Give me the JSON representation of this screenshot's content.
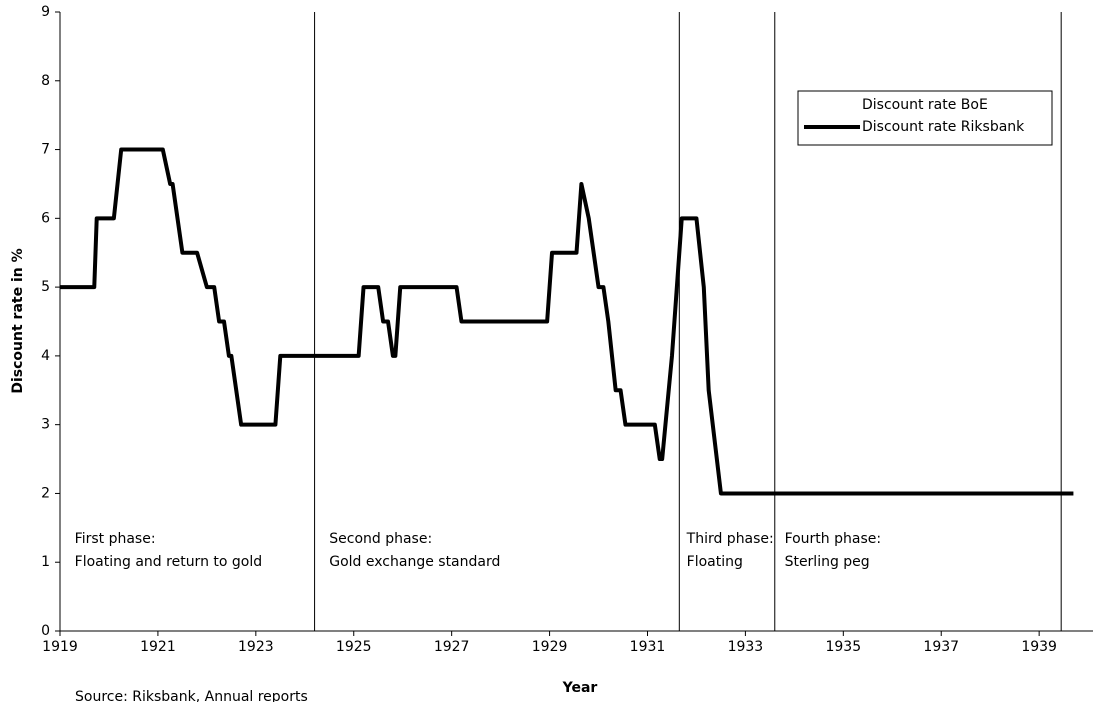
{
  "chart_data": {
    "type": "line",
    "x_label": "Year",
    "y_label": "Discount rate in %",
    "source": "Source: Riksbank, Annual reports",
    "x": [
      1919.0,
      1919.7,
      1919.75,
      1920.1,
      1920.25,
      1921.1,
      1921.25,
      1921.3,
      1921.5,
      1921.8,
      1922.0,
      1922.15,
      1922.25,
      1922.35,
      1922.45,
      1922.5,
      1922.7,
      1923.4,
      1923.5,
      1925.1,
      1925.2,
      1925.5,
      1925.6,
      1925.7,
      1925.8,
      1925.85,
      1925.95,
      1927.1,
      1927.2,
      1928.95,
      1929.05,
      1929.55,
      1929.65,
      1929.8,
      1930.0,
      1930.1,
      1930.2,
      1930.35,
      1930.45,
      1930.55,
      1931.15,
      1931.25,
      1931.3,
      1931.5,
      1931.7,
      1932.0,
      1932.15,
      1932.25,
      1932.5,
      1939.7
    ],
    "series": [
      {
        "name": "Discount rate BoE",
        "color": "#ffffff",
        "values": [
          null,
          null,
          null,
          null,
          null,
          null,
          null,
          null,
          null,
          null,
          null,
          null,
          null,
          null,
          null,
          null,
          null,
          null,
          null,
          null,
          null,
          null,
          null,
          null,
          null,
          null,
          null,
          null,
          null,
          null,
          null,
          null,
          null,
          null,
          null,
          null,
          null,
          null,
          null,
          null,
          null,
          null,
          null,
          null,
          null,
          null,
          null,
          null,
          null,
          null
        ]
      },
      {
        "name": "Discount rate Riksbank",
        "color": "#000000",
        "values": [
          5,
          5,
          6,
          6,
          7,
          7,
          6.5,
          6.5,
          5.5,
          5.5,
          5,
          5,
          4.5,
          4.5,
          4,
          4,
          3,
          3,
          4,
          4,
          5,
          5,
          4.5,
          4.5,
          4,
          4,
          5,
          5,
          4.5,
          4.5,
          5.5,
          5.5,
          6.5,
          6,
          5,
          5,
          4.5,
          3.5,
          3.5,
          3,
          3,
          2.5,
          2.5,
          4,
          6,
          6,
          5,
          3.5,
          2,
          2
        ]
      }
    ],
    "phase_dividers": [
      1924.2,
      1931.65,
      1933.6,
      1939.45
    ],
    "phases": [
      {
        "title": "First phase:",
        "label": "Floating and return to gold"
      },
      {
        "title": "Second phase:",
        "label": "Gold exchange standard"
      },
      {
        "title": "Third phase:",
        "label": "Floating"
      },
      {
        "title": "Fourth phase:",
        "label": "Sterling peg"
      }
    ],
    "phase_starts": [
      1919.3,
      1924.5,
      1931.8,
      1933.8
    ],
    "xlim": [
      1919,
      1940.1
    ],
    "xticks": [
      1919,
      1921,
      1923,
      1925,
      1927,
      1929,
      1931,
      1933,
      1935,
      1937,
      1939
    ],
    "ylim": [
      0,
      9
    ],
    "yticks": [
      0,
      1,
      2,
      3,
      4,
      5,
      6,
      7,
      8,
      9
    ],
    "legend": "upper right",
    "grid": false
  }
}
